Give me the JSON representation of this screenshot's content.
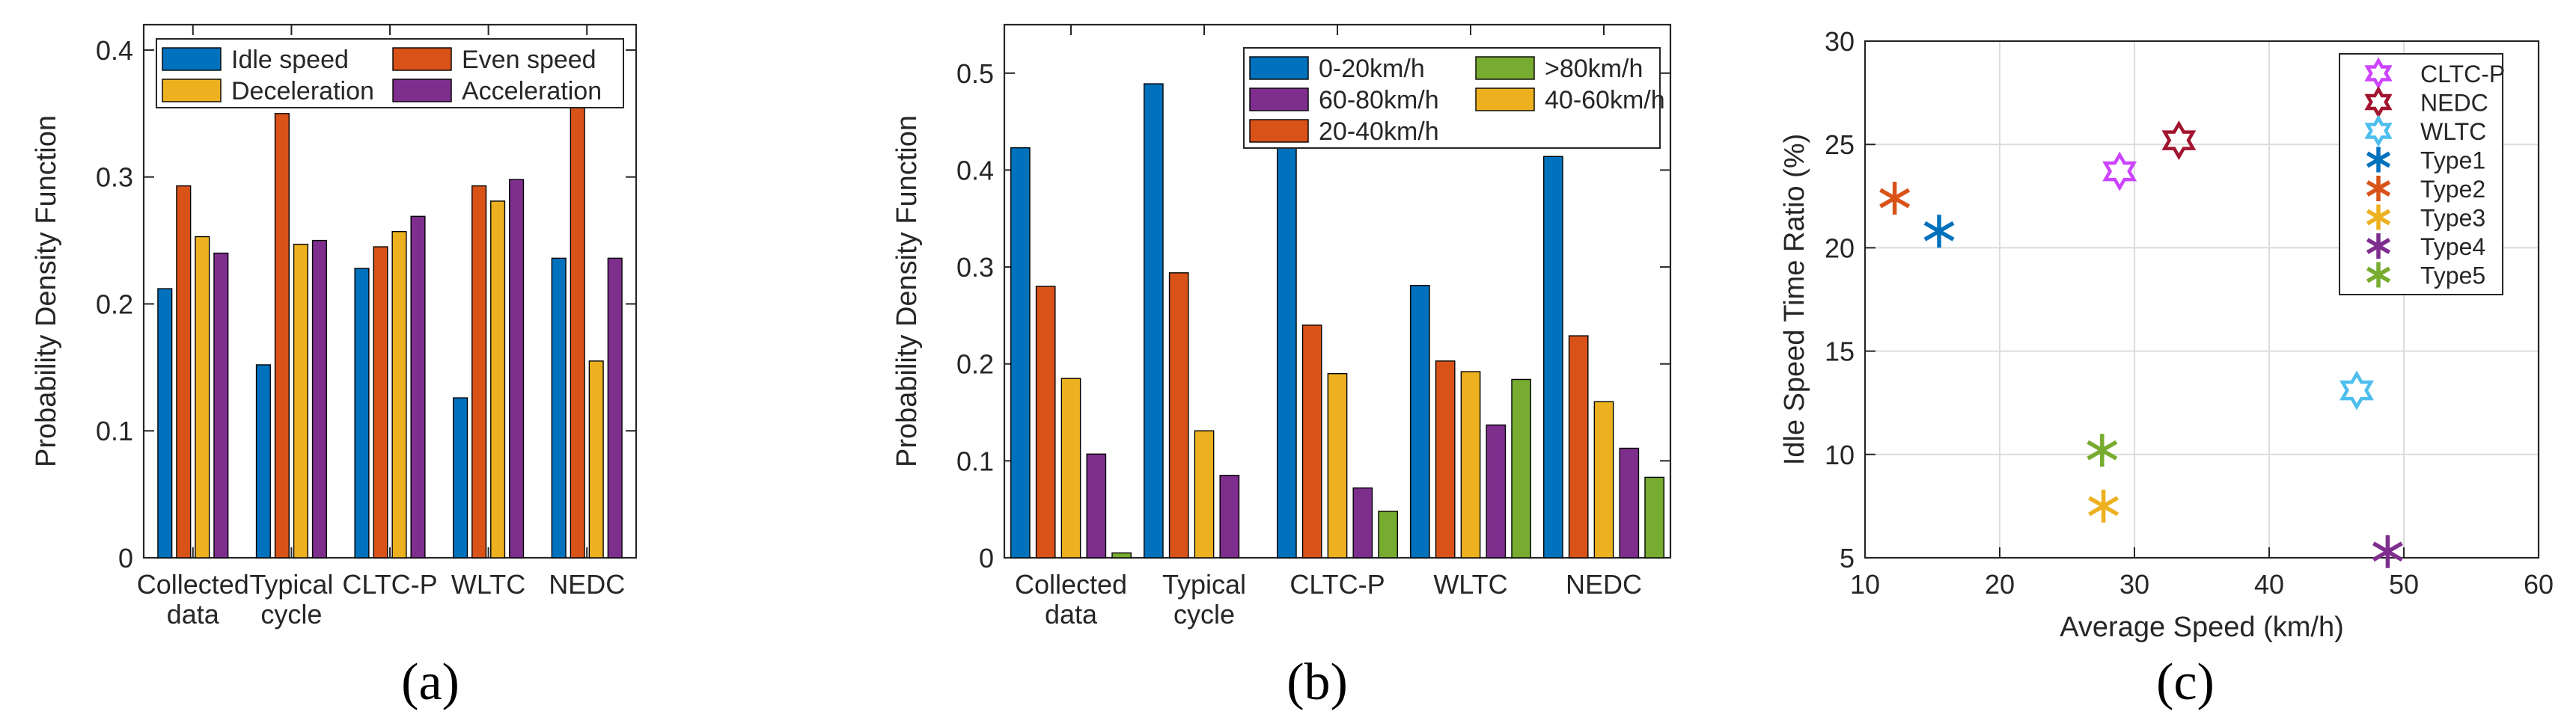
{
  "panel_labels": [
    "(a)",
    "(b)",
    "(c)"
  ],
  "colors": {
    "blue": "#0072BD",
    "orange": "#D95319",
    "yellow": "#EDB120",
    "purple": "#7E2F8E",
    "green": "#77AC30",
    "cyan": "#4DBEEE",
    "darkred": "#A2142F",
    "magenta": "#CC44FF"
  },
  "chart_data": [
    {
      "type": "bar",
      "title": "",
      "xlabel": "",
      "ylabel": "Probability Density Function",
      "ylim": [
        0,
        0.42
      ],
      "yticks": [
        0,
        0.1,
        0.2,
        0.3,
        0.4
      ],
      "categories": [
        [
          "Collected",
          "data"
        ],
        [
          "Typical",
          "cycle"
        ],
        [
          "CLTC-P"
        ],
        [
          "WLTC"
        ],
        [
          "NEDC"
        ]
      ],
      "series": [
        {
          "name": "Idle speed",
          "color": "#0072BD",
          "values": [
            0.212,
            0.152,
            0.228,
            0.126,
            0.236
          ]
        },
        {
          "name": "Even speed",
          "color": "#D95319",
          "values": [
            0.293,
            0.35,
            0.245,
            0.293,
            0.371
          ]
        },
        {
          "name": "Deceleration",
          "color": "#EDB120",
          "values": [
            0.253,
            0.247,
            0.257,
            0.281,
            0.155
          ]
        },
        {
          "name": "Acceleration",
          "color": "#7E2F8E",
          "values": [
            0.24,
            0.25,
            0.269,
            0.298,
            0.236
          ]
        }
      ],
      "legend": {
        "placement": "top",
        "order": [
          0,
          2,
          1,
          3
        ]
      }
    },
    {
      "type": "bar",
      "title": "",
      "xlabel": "",
      "ylabel": "Probability Density Function",
      "ylim": [
        0,
        0.55
      ],
      "yticks": [
        0,
        0.1,
        0.2,
        0.3,
        0.4,
        0.5
      ],
      "categories": [
        [
          "Collected",
          "data"
        ],
        [
          "Typical",
          "cycle"
        ],
        [
          "CLTC-P"
        ],
        [
          "WLTC"
        ],
        [
          "NEDC"
        ]
      ],
      "series": [
        {
          "name": "0-20km/h",
          "color": "#0072BD",
          "values": [
            0.423,
            0.489,
            0.45,
            0.281,
            0.414
          ]
        },
        {
          "name": "20-40km/h",
          "color": "#D95319",
          "values": [
            0.28,
            0.294,
            0.24,
            0.203,
            0.229
          ]
        },
        {
          "name": "40-60km/h",
          "color": "#EDB120",
          "values": [
            0.185,
            0.131,
            0.19,
            0.192,
            0.161
          ]
        },
        {
          "name": "60-80km/h",
          "color": "#7E2F8E",
          "values": [
            0.107,
            0.085,
            0.072,
            0.137,
            0.113
          ]
        },
        {
          "name": ">80km/h",
          "color": "#77AC30",
          "values": [
            0.005,
            0.0,
            0.048,
            0.184,
            0.083
          ]
        }
      ],
      "legend": {
        "placement": "top-right",
        "order": [
          0,
          3,
          1,
          4,
          2
        ]
      }
    },
    {
      "type": "scatter",
      "title": "",
      "xlabel": "Average Speed (km/h)",
      "ylabel": "Idle Speed Time Ratio (%)",
      "xlim": [
        10,
        60
      ],
      "ylim": [
        5,
        30
      ],
      "xticks": [
        10,
        20,
        30,
        40,
        50,
        60
      ],
      "yticks": [
        5,
        10,
        15,
        20,
        25,
        30
      ],
      "grid": true,
      "legend": {
        "placement": "top-right"
      },
      "series": [
        {
          "name": "CLTC-P",
          "marker": "hexagram",
          "color": "#CC44FF",
          "x": 28.9,
          "y": 23.7
        },
        {
          "name": "NEDC",
          "marker": "hexagram",
          "color": "#A2142F",
          "x": 33.3,
          "y": 25.2
        },
        {
          "name": "WLTC",
          "marker": "hexagram",
          "color": "#4DBEEE",
          "x": 46.5,
          "y": 13.1
        },
        {
          "name": "Type1",
          "marker": "asterisk",
          "color": "#0072BD",
          "x": 15.5,
          "y": 20.8
        },
        {
          "name": "Type2",
          "marker": "asterisk",
          "color": "#D95319",
          "x": 12.2,
          "y": 22.4
        },
        {
          "name": "Type3",
          "marker": "asterisk",
          "color": "#EDB120",
          "x": 27.7,
          "y": 7.5
        },
        {
          "name": "Type4",
          "marker": "asterisk",
          "color": "#7E2F8E",
          "x": 48.8,
          "y": 5.3
        },
        {
          "name": "Type5",
          "marker": "asterisk",
          "color": "#77AC30",
          "x": 27.6,
          "y": 10.2
        }
      ]
    }
  ]
}
